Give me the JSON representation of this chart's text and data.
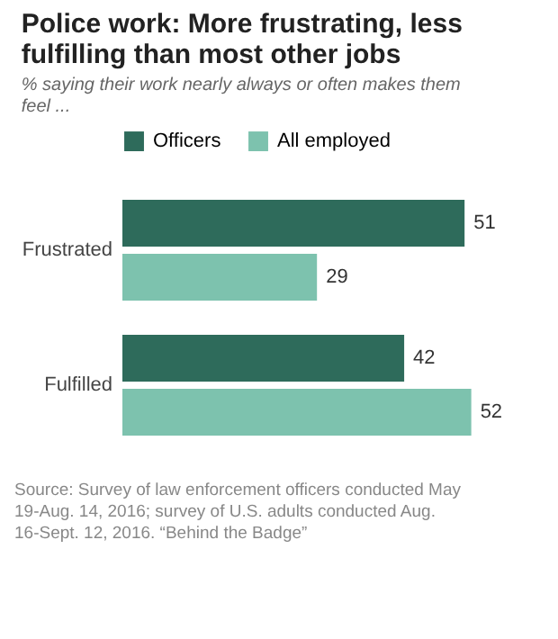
{
  "chart_data": {
    "type": "bar",
    "orientation": "horizontal",
    "title": "Police work: More frustrating, less fulfilling than most other jobs",
    "subtitle": "% saying their work nearly always or often makes them feel ...",
    "categories": [
      "Frustrated",
      "Fulfilled"
    ],
    "series": [
      {
        "name": "Officers",
        "color": "#2e6b5b",
        "values": [
          51,
          42
        ]
      },
      {
        "name": "All employed",
        "color": "#7dc2ae",
        "values": [
          29,
          52
        ]
      }
    ],
    "data_labels": true,
    "legend": "top",
    "tick_labels": "y",
    "annotations": [
      "Source: Survey of law enforcement officers conducted May 19-Aug. 14, 2016; survey of U.S. adults conducted Aug. 16-Sept. 12, 2016. “Behind the Badge”"
    ]
  }
}
